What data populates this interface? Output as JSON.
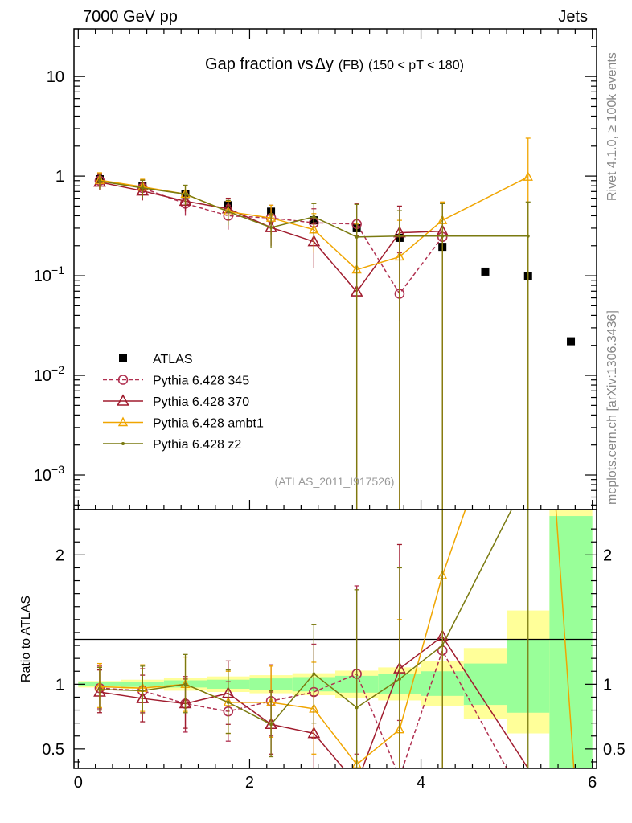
{
  "header": {
    "left": "7000 GeV pp",
    "right": "Jets"
  },
  "side_labels": {
    "rivet": "Rivet 4.1.0, ≥ 100k events",
    "mcplots": "mcplots.cern.ch [arXiv:1306.3436]"
  },
  "chart_data": {
    "type": "scatter",
    "title": "Gap fraction vs Δy (FB) (150 < pT < 180)",
    "title_parts": {
      "main": "Gap fraction vs",
      "delta": "Δ",
      "y": "y",
      "fb": "(FB)",
      "range": "(150 < pT < 180)"
    },
    "analysis_id": "(ATLAS_2011_I917526)",
    "xlabel": "",
    "ylabel": "",
    "xlim": [
      -0.05,
      6.05
    ],
    "ylim": [
      0.00045,
      30
    ],
    "yscale": "log",
    "x_ticks": [
      "0",
      "2",
      "4",
      "6"
    ],
    "y_ticks": [
      {
        "value": 10,
        "label": "10"
      },
      {
        "value": 1,
        "label": "1"
      },
      {
        "value": 0.1,
        "base": "10",
        "exp": "−1"
      },
      {
        "value": 0.01,
        "base": "10",
        "exp": "−2"
      },
      {
        "value": 0.001,
        "base": "10",
        "exp": "−3"
      }
    ],
    "ratio": {
      "ylabel": "Ratio to ATLAS",
      "ylim": [
        0.35,
        2.35
      ],
      "y_ticks": [
        {
          "value": 2,
          "label": "2"
        },
        {
          "value": 1,
          "label": "1"
        },
        {
          "value": 0.5,
          "label": "0.5"
        }
      ],
      "bands": [
        {
          "x": [
            0.0,
            0.5
          ],
          "inner": [
            0.985,
            1.015
          ],
          "outer": [
            0.975,
            1.025
          ]
        },
        {
          "x": [
            0.5,
            1.0
          ],
          "inner": [
            0.98,
            1.02
          ],
          "outer": [
            0.965,
            1.035
          ]
        },
        {
          "x": [
            1.0,
            1.5
          ],
          "inner": [
            0.975,
            1.03
          ],
          "outer": [
            0.95,
            1.05
          ]
        },
        {
          "x": [
            1.5,
            2.0
          ],
          "inner": [
            0.965,
            1.035
          ],
          "outer": [
            0.94,
            1.06
          ]
        },
        {
          "x": [
            2.0,
            2.5
          ],
          "inner": [
            0.955,
            1.045
          ],
          "outer": [
            0.93,
            1.07
          ]
        },
        {
          "x": [
            2.5,
            3.0
          ],
          "inner": [
            0.945,
            1.055
          ],
          "outer": [
            0.915,
            1.085
          ]
        },
        {
          "x": [
            3.0,
            3.5
          ],
          "inner": [
            0.935,
            1.065
          ],
          "outer": [
            0.895,
            1.105
          ]
        },
        {
          "x": [
            3.5,
            4.0
          ],
          "inner": [
            0.925,
            1.08
          ],
          "outer": [
            0.875,
            1.13
          ]
        },
        {
          "x": [
            4.0,
            4.5
          ],
          "inner": [
            0.91,
            1.1
          ],
          "outer": [
            0.83,
            1.18
          ]
        },
        {
          "x": [
            4.5,
            5.0
          ],
          "inner": [
            0.84,
            1.16
          ],
          "outer": [
            0.73,
            1.28
          ]
        },
        {
          "x": [
            5.0,
            5.5
          ],
          "inner": [
            0.78,
            1.35
          ],
          "outer": [
            0.62,
            1.57
          ]
        },
        {
          "x": [
            5.5,
            6.0
          ],
          "inner": [
            0.2,
            2.3
          ],
          "outer": [
            0.2,
            2.6
          ]
        }
      ]
    },
    "series": [
      {
        "name": "ATLAS",
        "color": "#000000",
        "marker": "square",
        "line": "none",
        "points": [
          {
            "x": 0.25,
            "y": 0.93
          },
          {
            "x": 0.75,
            "y": 0.8
          },
          {
            "x": 1.25,
            "y": 0.66
          },
          {
            "x": 1.75,
            "y": 0.51
          },
          {
            "x": 2.25,
            "y": 0.44
          },
          {
            "x": 2.75,
            "y": 0.36
          },
          {
            "x": 3.25,
            "y": 0.3
          },
          {
            "x": 3.75,
            "y": 0.24
          },
          {
            "x": 4.25,
            "y": 0.195
          },
          {
            "x": 4.75,
            "y": 0.11
          },
          {
            "x": 5.25,
            "y": 0.099
          },
          {
            "x": 5.75,
            "y": 0.022
          }
        ]
      },
      {
        "name": "Pythia 6.428 345",
        "color": "#b03050",
        "marker": "circle",
        "line": "dashed",
        "points": [
          {
            "x": 0.25,
            "y": 0.9,
            "lo": 0.75,
            "hi": 1.07
          },
          {
            "x": 0.75,
            "y": 0.76,
            "lo": 0.62,
            "hi": 0.91
          },
          {
            "x": 1.25,
            "y": 0.53,
            "lo": 0.4,
            "hi": 0.66
          },
          {
            "x": 1.75,
            "y": 0.4,
            "lo": 0.29,
            "hi": 0.51
          },
          {
            "x": 2.25,
            "y": 0.38,
            "lo": 0.26,
            "hi": 0.51
          },
          {
            "x": 2.75,
            "y": 0.34,
            "lo": 0.21,
            "hi": 0.47
          },
          {
            "x": 3.25,
            "y": 0.33,
            "lo": 0.14,
            "hi": 0.53
          },
          {
            "x": 3.75,
            "y": 0.066,
            "lo": 0.0003,
            "hi": 0.17
          },
          {
            "x": 4.25,
            "y": 0.245,
            "lo": 0.0003,
            "hi": 0.53
          }
        ],
        "ratio": [
          {
            "x": 0.25,
            "y": 0.97,
            "lo": 0.81,
            "hi": 1.14
          },
          {
            "x": 0.75,
            "y": 0.95,
            "lo": 0.78,
            "hi": 1.12
          },
          {
            "x": 1.25,
            "y": 0.85,
            "lo": 0.63,
            "hi": 1.06
          },
          {
            "x": 1.75,
            "y": 0.79,
            "lo": 0.56,
            "hi": 1.02
          },
          {
            "x": 2.25,
            "y": 0.87,
            "lo": 0.6,
            "hi": 1.15
          },
          {
            "x": 2.75,
            "y": 0.94,
            "lo": 0.58,
            "hi": 1.31
          },
          {
            "x": 3.25,
            "y": 1.08,
            "lo": 0.46,
            "hi": 1.76
          },
          {
            "x": 3.75,
            "y": 0.28,
            "lo": 0.2,
            "hi": 0.72
          },
          {
            "x": 4.25,
            "y": 1.26,
            "lo": 0.2,
            "hi": 2.35
          },
          {
            "x": 5.0,
            "y": 0.35
          }
        ]
      },
      {
        "name": "Pythia 6.428 370",
        "color": "#a01c2e",
        "marker": "triangle",
        "line": "solid",
        "points": [
          {
            "x": 0.25,
            "y": 0.87,
            "lo": 0.72,
            "hi": 1.03
          },
          {
            "x": 0.75,
            "y": 0.71,
            "lo": 0.57,
            "hi": 0.86
          },
          {
            "x": 1.25,
            "y": 0.56,
            "lo": 0.44,
            "hi": 0.69
          },
          {
            "x": 1.75,
            "y": 0.47,
            "lo": 0.35,
            "hi": 0.6
          },
          {
            "x": 2.25,
            "y": 0.305,
            "lo": 0.2,
            "hi": 0.42
          },
          {
            "x": 2.75,
            "y": 0.22,
            "lo": 0.12,
            "hi": 0.33
          },
          {
            "x": 3.25,
            "y": 0.069,
            "lo": 0.0003,
            "hi": 0.25
          },
          {
            "x": 3.75,
            "y": 0.27,
            "lo": 0.035,
            "hi": 0.5
          },
          {
            "x": 4.25,
            "y": 0.28,
            "lo": 0.0003,
            "hi": 0.54
          }
        ],
        "ratio": [
          {
            "x": 0.25,
            "y": 0.94,
            "lo": 0.78,
            "hi": 1.11
          },
          {
            "x": 0.75,
            "y": 0.89,
            "lo": 0.71,
            "hi": 1.07
          },
          {
            "x": 1.25,
            "y": 0.85,
            "lo": 0.66,
            "hi": 1.04
          },
          {
            "x": 1.75,
            "y": 0.93,
            "lo": 0.69,
            "hi": 1.18
          },
          {
            "x": 2.25,
            "y": 0.69,
            "lo": 0.46,
            "hi": 0.94
          },
          {
            "x": 2.75,
            "y": 0.62,
            "lo": 0.33,
            "hi": 0.91
          },
          {
            "x": 3.25,
            "y": 0.23
          },
          {
            "x": 3.75,
            "y": 1.12,
            "lo": 0.15,
            "hi": 2.08
          },
          {
            "x": 4.25,
            "y": 1.37,
            "lo": 0.2,
            "hi": 2.35
          },
          {
            "x": 5.25,
            "y": 0.35
          }
        ]
      },
      {
        "name": "Pythia 6.428 ambt1",
        "color": "#f0a500",
        "marker": "triangle-small",
        "line": "solid",
        "points": [
          {
            "x": 0.25,
            "y": 0.91,
            "lo": 0.76,
            "hi": 1.08
          },
          {
            "x": 0.75,
            "y": 0.78,
            "lo": 0.64,
            "hi": 0.93
          },
          {
            "x": 1.25,
            "y": 0.66,
            "lo": 0.52,
            "hi": 0.8
          },
          {
            "x": 1.75,
            "y": 0.44,
            "lo": 0.32,
            "hi": 0.56
          },
          {
            "x": 2.25,
            "y": 0.38,
            "lo": 0.26,
            "hi": 0.51
          },
          {
            "x": 2.75,
            "y": 0.29,
            "lo": 0.17,
            "hi": 0.42
          },
          {
            "x": 3.25,
            "y": 0.115,
            "lo": 0.0003,
            "hi": 0.33
          },
          {
            "x": 3.75,
            "y": 0.155,
            "lo": 0.0003,
            "hi": 0.36
          },
          {
            "x": 4.25,
            "y": 0.36,
            "lo": 0.0003,
            "hi": 0.55
          },
          {
            "x": 5.25,
            "y": 0.98,
            "lo": 0.0003,
            "hi": 2.4
          }
        ],
        "ratio": [
          {
            "x": 0.25,
            "y": 0.98,
            "lo": 0.82,
            "hi": 1.16
          },
          {
            "x": 0.75,
            "y": 0.97,
            "lo": 0.79,
            "hi": 1.15
          },
          {
            "x": 1.25,
            "y": 1.0,
            "lo": 0.79,
            "hi": 1.21
          },
          {
            "x": 1.75,
            "y": 0.86,
            "lo": 0.62,
            "hi": 1.1
          },
          {
            "x": 2.25,
            "y": 0.86,
            "lo": 0.59,
            "hi": 1.14
          },
          {
            "x": 2.75,
            "y": 0.81,
            "lo": 0.46,
            "hi": 1.17
          },
          {
            "x": 3.25,
            "y": 0.38
          },
          {
            "x": 3.75,
            "y": 0.65,
            "lo": 0.2,
            "hi": 1.5
          },
          {
            "x": 4.25,
            "y": 1.84,
            "lo": 0.2,
            "hi": 2.35
          },
          {
            "x": 4.65,
            "y": 2.6
          },
          {
            "x": 5.55,
            "y": 2.6
          },
          {
            "x": 5.8,
            "y": 0.2
          }
        ]
      },
      {
        "name": "Pythia 6.428 z2",
        "color": "#7a7a10",
        "marker": "dot",
        "line": "solid",
        "points": [
          {
            "x": 0.25,
            "y": 0.89,
            "lo": 0.74,
            "hi": 1.05
          },
          {
            "x": 0.75,
            "y": 0.76,
            "lo": 0.61,
            "hi": 0.91
          },
          {
            "x": 1.25,
            "y": 0.66,
            "lo": 0.51,
            "hi": 0.81
          },
          {
            "x": 1.75,
            "y": 0.44,
            "lo": 0.32,
            "hi": 0.57
          },
          {
            "x": 2.25,
            "y": 0.305,
            "lo": 0.19,
            "hi": 0.42
          },
          {
            "x": 2.75,
            "y": 0.39,
            "lo": 0.25,
            "hi": 0.53
          },
          {
            "x": 3.25,
            "y": 0.245,
            "lo": 0.0003,
            "hi": 0.52
          },
          {
            "x": 3.75,
            "y": 0.25,
            "lo": 0.0003,
            "hi": 0.45
          },
          {
            "x": 4.25,
            "y": 0.25,
            "lo": 0.0003,
            "hi": 0.53
          },
          {
            "x": 5.25,
            "y": 0.25,
            "lo": 0.0003,
            "hi": 0.55
          }
        ],
        "ratio": [
          {
            "x": 0.25,
            "y": 0.96,
            "lo": 0.8,
            "hi": 1.13
          },
          {
            "x": 0.75,
            "y": 0.95,
            "lo": 0.77,
            "hi": 1.14
          },
          {
            "x": 1.25,
            "y": 1.0,
            "lo": 0.78,
            "hi": 1.23
          },
          {
            "x": 1.75,
            "y": 0.86,
            "lo": 0.62,
            "hi": 1.11
          },
          {
            "x": 2.25,
            "y": 0.69,
            "lo": 0.44,
            "hi": 0.95
          },
          {
            "x": 2.75,
            "y": 1.08,
            "lo": 0.7,
            "hi": 1.46
          },
          {
            "x": 3.25,
            "y": 0.82,
            "lo": 0.2,
            "hi": 1.73
          },
          {
            "x": 3.75,
            "y": 1.04,
            "lo": 0.2,
            "hi": 1.9
          },
          {
            "x": 4.25,
            "y": 1.3,
            "lo": 0.2,
            "hi": 2.35
          },
          {
            "x": 5.25,
            "y": 2.6,
            "lo": 0.2,
            "hi": 2.6
          }
        ]
      }
    ]
  }
}
